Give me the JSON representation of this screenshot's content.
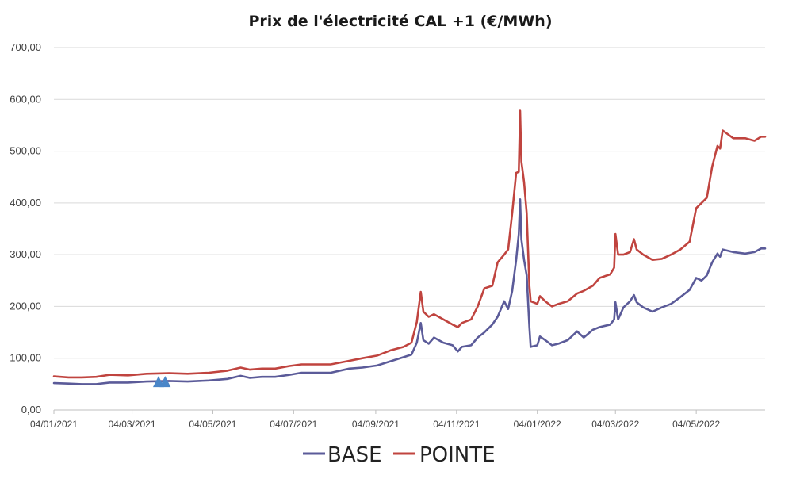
{
  "chart_data": {
    "type": "line",
    "title": "Prix de l'électricité CAL +1 (€/MWh)",
    "xlabel": "",
    "ylabel": "",
    "ylim": [
      0,
      700
    ],
    "yticks": [
      "0,00",
      "100,00",
      "200,00",
      "300,00",
      "400,00",
      "500,00",
      "600,00",
      "700,00"
    ],
    "ytick_values": [
      0,
      100,
      200,
      300,
      400,
      500,
      600,
      700
    ],
    "xlim": [
      "2021-01-04",
      "2022-06-25"
    ],
    "xticks": [
      "04/01/2021",
      "04/03/2021",
      "04/05/2021",
      "04/07/2021",
      "04/09/2021",
      "04/11/2021",
      "04/01/2022",
      "04/03/2022",
      "04/05/2022"
    ],
    "xtick_dates": [
      "2021-01-04",
      "2021-03-04",
      "2021-05-04",
      "2021-07-04",
      "2021-09-04",
      "2021-11-04",
      "2022-01-04",
      "2022-03-04",
      "2022-05-04"
    ],
    "grid": "horizontal",
    "legend": "bottom",
    "colors": {
      "base": "#5b5b99",
      "pointe": "#c0443f",
      "marker": "#4a86c8",
      "grid": "#d9d9d9"
    },
    "markers": [
      {
        "shape": "triangle",
        "date": "2021-03-24",
        "y": 55
      },
      {
        "shape": "triangle",
        "date": "2021-03-29",
        "y": 55
      }
    ],
    "series": [
      {
        "name": "BASE",
        "points": [
          [
            "2021-01-04",
            52
          ],
          [
            "2021-01-15",
            51
          ],
          [
            "2021-01-25",
            50
          ],
          [
            "2021-02-05",
            50
          ],
          [
            "2021-02-15",
            53
          ],
          [
            "2021-03-01",
            53
          ],
          [
            "2021-03-15",
            55
          ],
          [
            "2021-04-01",
            56
          ],
          [
            "2021-04-15",
            55
          ],
          [
            "2021-05-01",
            57
          ],
          [
            "2021-05-15",
            60
          ],
          [
            "2021-05-25",
            66
          ],
          [
            "2021-06-01",
            62
          ],
          [
            "2021-06-10",
            64
          ],
          [
            "2021-06-20",
            64
          ],
          [
            "2021-07-01",
            68
          ],
          [
            "2021-07-10",
            72
          ],
          [
            "2021-07-20",
            72
          ],
          [
            "2021-08-01",
            72
          ],
          [
            "2021-08-15",
            80
          ],
          [
            "2021-08-25",
            82
          ],
          [
            "2021-09-05",
            86
          ],
          [
            "2021-09-15",
            94
          ],
          [
            "2021-09-25",
            102
          ],
          [
            "2021-10-01",
            107
          ],
          [
            "2021-10-05",
            130
          ],
          [
            "2021-10-08",
            168
          ],
          [
            "2021-10-10",
            135
          ],
          [
            "2021-10-14",
            128
          ],
          [
            "2021-10-18",
            140
          ],
          [
            "2021-10-25",
            130
          ],
          [
            "2021-11-01",
            125
          ],
          [
            "2021-11-05",
            113
          ],
          [
            "2021-11-08",
            122
          ],
          [
            "2021-11-15",
            125
          ],
          [
            "2021-11-20",
            140
          ],
          [
            "2021-11-25",
            150
          ],
          [
            "2021-12-01",
            165
          ],
          [
            "2021-12-05",
            180
          ],
          [
            "2021-12-10",
            210
          ],
          [
            "2021-12-13",
            195
          ],
          [
            "2021-12-16",
            230
          ],
          [
            "2021-12-19",
            290
          ],
          [
            "2021-12-21",
            340
          ],
          [
            "2021-12-22",
            407
          ],
          [
            "2021-12-23",
            330
          ],
          [
            "2021-12-25",
            290
          ],
          [
            "2021-12-27",
            260
          ],
          [
            "2021-12-29",
            160
          ],
          [
            "2021-12-30",
            122
          ],
          [
            "2022-01-04",
            125
          ],
          [
            "2022-01-06",
            142
          ],
          [
            "2022-01-10",
            135
          ],
          [
            "2022-01-15",
            125
          ],
          [
            "2022-01-20",
            128
          ],
          [
            "2022-01-27",
            135
          ],
          [
            "2022-02-03",
            152
          ],
          [
            "2022-02-08",
            140
          ],
          [
            "2022-02-15",
            155
          ],
          [
            "2022-02-20",
            160
          ],
          [
            "2022-02-28",
            165
          ],
          [
            "2022-03-03",
            175
          ],
          [
            "2022-03-04",
            208
          ],
          [
            "2022-03-06",
            175
          ],
          [
            "2022-03-10",
            198
          ],
          [
            "2022-03-15",
            210
          ],
          [
            "2022-03-18",
            222
          ],
          [
            "2022-03-20",
            208
          ],
          [
            "2022-03-25",
            198
          ],
          [
            "2022-04-01",
            190
          ],
          [
            "2022-04-08",
            198
          ],
          [
            "2022-04-15",
            205
          ],
          [
            "2022-04-22",
            218
          ],
          [
            "2022-04-29",
            232
          ],
          [
            "2022-05-04",
            255
          ],
          [
            "2022-05-08",
            250
          ],
          [
            "2022-05-12",
            260
          ],
          [
            "2022-05-16",
            285
          ],
          [
            "2022-05-20",
            302
          ],
          [
            "2022-05-22",
            296
          ],
          [
            "2022-05-24",
            310
          ],
          [
            "2022-06-01",
            305
          ],
          [
            "2022-06-10",
            302
          ],
          [
            "2022-06-17",
            305
          ],
          [
            "2022-06-22",
            312
          ],
          [
            "2022-06-25",
            312
          ]
        ]
      },
      {
        "name": "POINTE",
        "points": [
          [
            "2021-01-04",
            65
          ],
          [
            "2021-01-15",
            63
          ],
          [
            "2021-01-25",
            63
          ],
          [
            "2021-02-05",
            64
          ],
          [
            "2021-02-15",
            68
          ],
          [
            "2021-03-01",
            67
          ],
          [
            "2021-03-15",
            70
          ],
          [
            "2021-04-01",
            71
          ],
          [
            "2021-04-15",
            70
          ],
          [
            "2021-05-01",
            72
          ],
          [
            "2021-05-15",
            76
          ],
          [
            "2021-05-25",
            82
          ],
          [
            "2021-06-01",
            78
          ],
          [
            "2021-06-10",
            80
          ],
          [
            "2021-06-20",
            80
          ],
          [
            "2021-07-01",
            85
          ],
          [
            "2021-07-10",
            88
          ],
          [
            "2021-07-20",
            88
          ],
          [
            "2021-08-01",
            88
          ],
          [
            "2021-08-15",
            95
          ],
          [
            "2021-08-25",
            100
          ],
          [
            "2021-09-05",
            105
          ],
          [
            "2021-09-15",
            115
          ],
          [
            "2021-09-25",
            122
          ],
          [
            "2021-10-01",
            130
          ],
          [
            "2021-10-05",
            170
          ],
          [
            "2021-10-08",
            228
          ],
          [
            "2021-10-10",
            190
          ],
          [
            "2021-10-14",
            180
          ],
          [
            "2021-10-18",
            185
          ],
          [
            "2021-10-25",
            175
          ],
          [
            "2021-11-01",
            165
          ],
          [
            "2021-11-05",
            160
          ],
          [
            "2021-11-08",
            168
          ],
          [
            "2021-11-15",
            175
          ],
          [
            "2021-11-20",
            200
          ],
          [
            "2021-11-25",
            235
          ],
          [
            "2021-12-01",
            240
          ],
          [
            "2021-12-05",
            285
          ],
          [
            "2021-12-10",
            300
          ],
          [
            "2021-12-13",
            310
          ],
          [
            "2021-12-16",
            380
          ],
          [
            "2021-12-19",
            458
          ],
          [
            "2021-12-21",
            460
          ],
          [
            "2021-12-22",
            578
          ],
          [
            "2021-12-23",
            480
          ],
          [
            "2021-12-25",
            440
          ],
          [
            "2021-12-27",
            380
          ],
          [
            "2021-12-29",
            240
          ],
          [
            "2021-12-30",
            210
          ],
          [
            "2022-01-04",
            205
          ],
          [
            "2022-01-06",
            220
          ],
          [
            "2022-01-10",
            210
          ],
          [
            "2022-01-15",
            200
          ],
          [
            "2022-01-20",
            205
          ],
          [
            "2022-01-27",
            210
          ],
          [
            "2022-02-03",
            225
          ],
          [
            "2022-02-08",
            230
          ],
          [
            "2022-02-15",
            240
          ],
          [
            "2022-02-20",
            255
          ],
          [
            "2022-02-28",
            262
          ],
          [
            "2022-03-03",
            275
          ],
          [
            "2022-03-04",
            340
          ],
          [
            "2022-03-06",
            300
          ],
          [
            "2022-03-10",
            300
          ],
          [
            "2022-03-15",
            305
          ],
          [
            "2022-03-18",
            330
          ],
          [
            "2022-03-20",
            310
          ],
          [
            "2022-03-25",
            300
          ],
          [
            "2022-04-01",
            290
          ],
          [
            "2022-04-08",
            292
          ],
          [
            "2022-04-15",
            300
          ],
          [
            "2022-04-22",
            310
          ],
          [
            "2022-04-29",
            325
          ],
          [
            "2022-05-04",
            390
          ],
          [
            "2022-05-08",
            400
          ],
          [
            "2022-05-12",
            410
          ],
          [
            "2022-05-16",
            470
          ],
          [
            "2022-05-20",
            510
          ],
          [
            "2022-05-22",
            505
          ],
          [
            "2022-05-24",
            540
          ],
          [
            "2022-06-01",
            525
          ],
          [
            "2022-06-10",
            525
          ],
          [
            "2022-06-17",
            520
          ],
          [
            "2022-06-22",
            528
          ],
          [
            "2022-06-25",
            528
          ]
        ]
      }
    ]
  }
}
